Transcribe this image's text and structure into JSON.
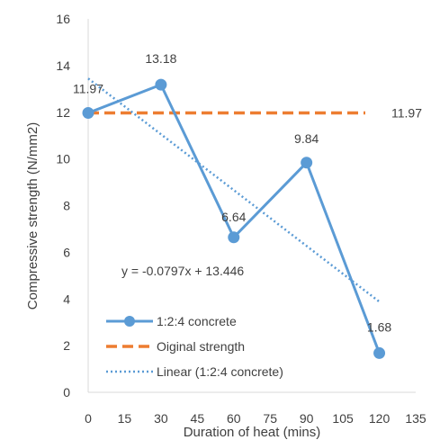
{
  "chart_data": {
    "type": "line",
    "title": "",
    "xlabel": "Duration of heat (mins)",
    "ylabel": "Compressive strength  (N/mm2)",
    "xlim": [
      0,
      135
    ],
    "ylim": [
      0,
      16
    ],
    "xticks": [
      0,
      15,
      30,
      45,
      60,
      75,
      90,
      105,
      120,
      135
    ],
    "yticks": [
      0,
      2,
      4,
      6,
      8,
      10,
      12,
      14,
      16
    ],
    "grid": false,
    "legend_position": "bottom-left",
    "series": [
      {
        "name": "1:2:4 concrete",
        "style": "solid line with circle markers",
        "color": "#5B9BD5",
        "x": [
          0,
          30,
          60,
          90,
          120
        ],
        "y": [
          11.97,
          13.18,
          6.64,
          9.84,
          1.68
        ],
        "labels": [
          "11.97",
          "13.18",
          "6.64",
          "9.84",
          "1.68"
        ]
      },
      {
        "name": "Oiginal strength",
        "style": "dashed line",
        "color": "#ED7D31",
        "x": [
          0,
          135
        ],
        "y": [
          11.97,
          11.97
        ],
        "end_label": "11.97"
      },
      {
        "name": "Linear (1:2:4 concrete)",
        "style": "dotted trendline",
        "color": "#5B9BD5",
        "slope": -0.0797,
        "intercept": 13.446,
        "x": [
          0,
          120
        ]
      }
    ],
    "annotations": [
      "y = -0.0797x + 13.446"
    ]
  }
}
